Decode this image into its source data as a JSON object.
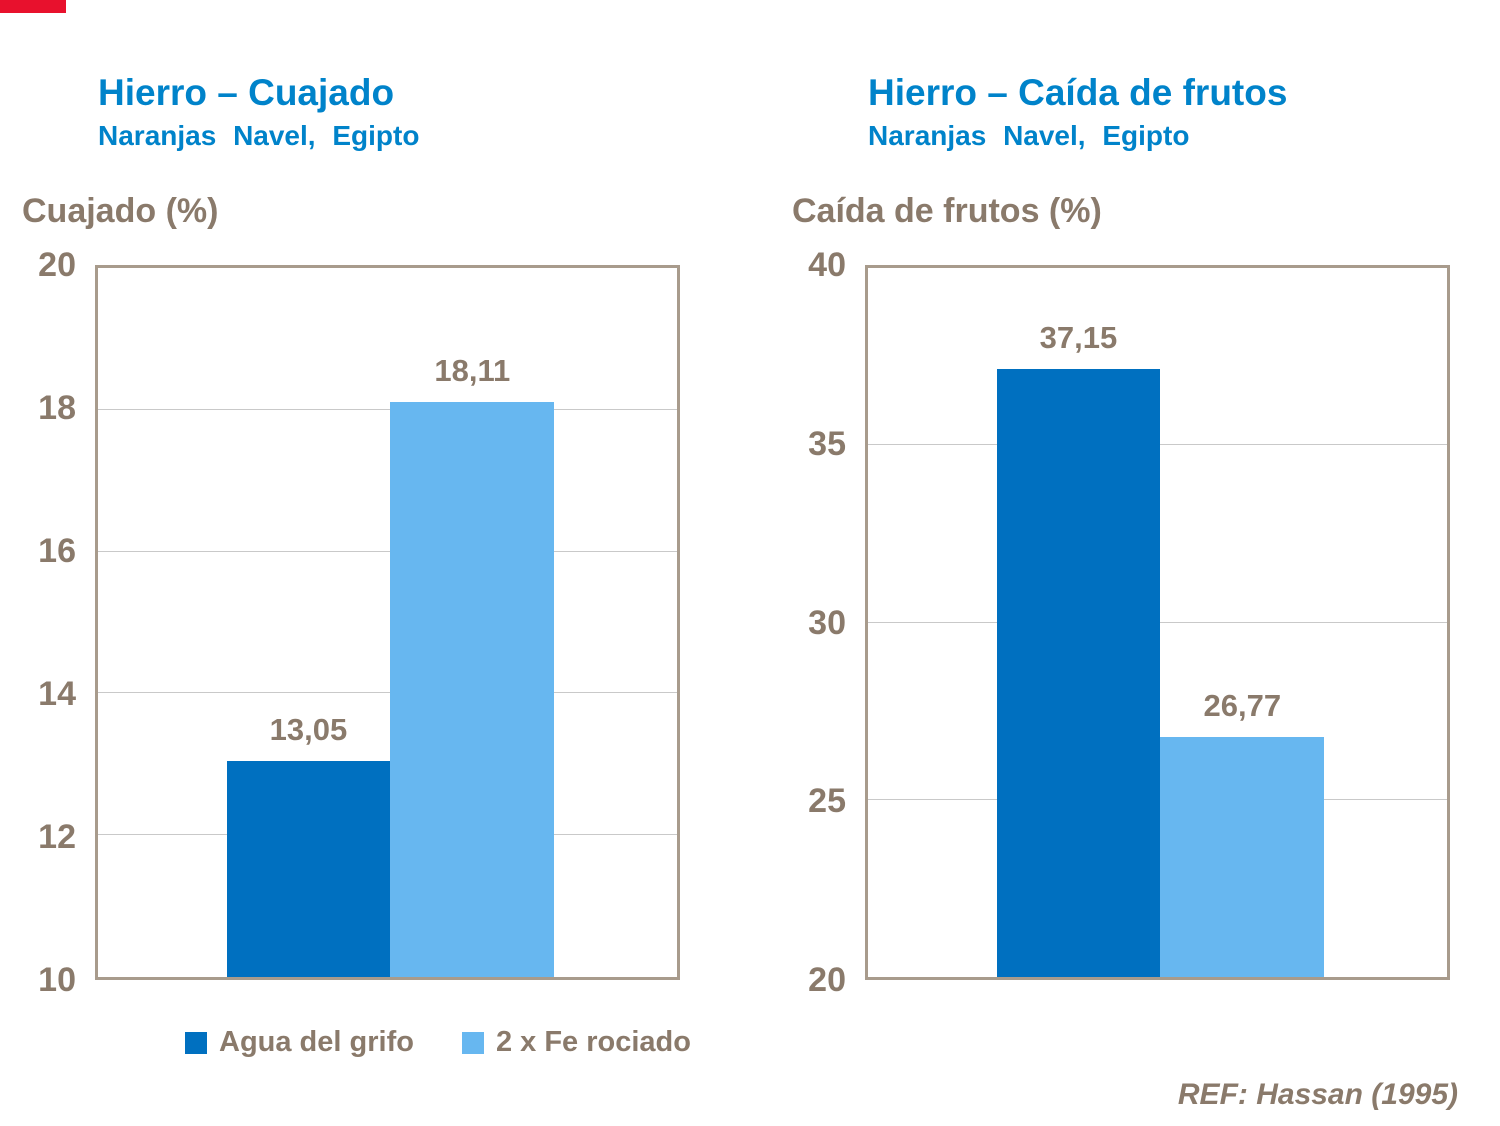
{
  "brand": {
    "strip_color": "#E8112D"
  },
  "colors": {
    "accent_blue": "#0083CA",
    "axis_text": "#8A7A6B",
    "plot_border": "#A89B8C",
    "gridline": "#C9C9C9",
    "series_dark_blue": "#0070C0",
    "series_light_blue": "#67B7F0"
  },
  "reference": "REF: Hassan (1995)",
  "legend": [
    {
      "label": "Agua del grifo",
      "color": "#0070C0"
    },
    {
      "label": "2 x Fe rociado",
      "color": "#67B7F0"
    }
  ],
  "chart_data": [
    {
      "type": "bar",
      "title": "Hierro – Cuajado",
      "subtitle": "Naranjas Navel, Egipto",
      "ylabel": "Cuajado (%)",
      "ylim": [
        10,
        20
      ],
      "yticks": [
        10,
        12,
        14,
        16,
        18,
        20
      ],
      "grid": true,
      "legend_position": "bottom",
      "categories": [
        "Agua del grifo",
        "2 x Fe rociado"
      ],
      "series": [
        {
          "name": "Agua del grifo",
          "value": 13.05,
          "label": "13,05",
          "color": "#0070C0"
        },
        {
          "name": "2 x Fe rociado",
          "value": 18.11,
          "label": "18,11",
          "color": "#67B7F0"
        }
      ]
    },
    {
      "type": "bar",
      "title": "Hierro – Caída de frutos",
      "subtitle": "Naranjas Navel, Egipto",
      "ylabel": "Caída de frutos (%)",
      "ylim": [
        20,
        40
      ],
      "yticks": [
        20,
        25,
        30,
        35,
        40
      ],
      "grid": true,
      "legend_position": "none",
      "categories": [
        "Agua del grifo",
        "2 x Fe rociado"
      ],
      "series": [
        {
          "name": "Agua del grifo",
          "value": 37.15,
          "label": "37,15",
          "color": "#0070C0"
        },
        {
          "name": "2 x Fe rociado",
          "value": 26.77,
          "label": "26,77",
          "color": "#67B7F0"
        }
      ]
    }
  ]
}
